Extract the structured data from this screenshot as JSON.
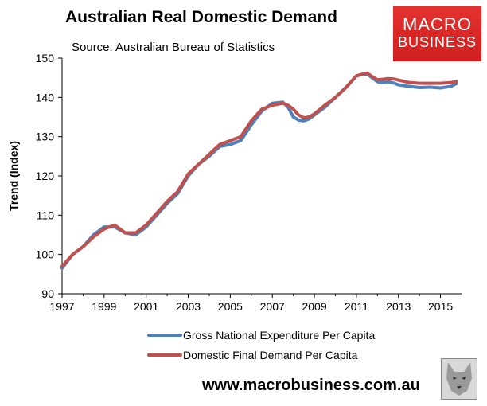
{
  "header": {
    "title": "Australian Real Domestic Demand",
    "subtitle": "Source: Australian Bureau of Statistics"
  },
  "logo": {
    "line1": "MACRO",
    "line2": "BUSINESS",
    "color": "#d62a27"
  },
  "footer": {
    "url": "www.macrobusiness.com.au",
    "badge_icon": "wolf-icon"
  },
  "chart_data": {
    "type": "line",
    "title": "Australian Real Domestic Demand",
    "ylabel": "Trend (Index)",
    "xlabel": "",
    "xlim": [
      1997,
      2016
    ],
    "ylim": [
      90,
      150
    ],
    "xticks": [
      "1997",
      "1999",
      "2001",
      "2003",
      "2005",
      "2007",
      "2009",
      "2011",
      "2013",
      "2015"
    ],
    "yticks": [
      "90",
      "100",
      "110",
      "120",
      "130",
      "140",
      "150"
    ],
    "grid": false,
    "legend": "bottom",
    "series": [
      {
        "name": "Gross National Expenditure Per Capita",
        "color": "#4f81bd",
        "x": [
          1997.0,
          1997.5,
          1998.0,
          1998.5,
          1999.0,
          1999.5,
          2000.0,
          2000.5,
          2001.0,
          2001.5,
          2002.0,
          2002.5,
          2003.0,
          2003.5,
          2004.0,
          2004.5,
          2005.0,
          2005.5,
          2006.0,
          2006.5,
          2007.0,
          2007.5,
          2007.75,
          2008.0,
          2008.25,
          2008.5,
          2008.75,
          2009.0,
          2009.5,
          2010.0,
          2010.5,
          2011.0,
          2011.5,
          2011.75,
          2012.0,
          2012.25,
          2012.5,
          2012.75,
          2013.0,
          2013.5,
          2014.0,
          2014.5,
          2015.0,
          2015.5,
          2015.75
        ],
        "values": [
          96.5,
          100.0,
          102.0,
          105.0,
          107.0,
          107.0,
          105.5,
          105.0,
          107.0,
          110.0,
          113.0,
          115.5,
          120.0,
          123.0,
          125.0,
          127.5,
          128.0,
          129.0,
          133.0,
          136.5,
          138.5,
          138.8,
          137.5,
          135.0,
          134.2,
          134.0,
          134.5,
          135.5,
          137.5,
          140.0,
          142.5,
          145.5,
          146.0,
          145.0,
          144.0,
          143.8,
          144.0,
          143.7,
          143.2,
          142.8,
          142.5,
          142.6,
          142.4,
          142.8,
          143.5
        ]
      },
      {
        "name": "Domestic Final Demand Per Capita",
        "color": "#c0504d",
        "x": [
          1997.0,
          1997.5,
          1998.0,
          1998.5,
          1999.0,
          1999.5,
          2000.0,
          2000.5,
          2001.0,
          2001.5,
          2002.0,
          2002.5,
          2003.0,
          2003.5,
          2004.0,
          2004.5,
          2005.0,
          2005.5,
          2006.0,
          2006.5,
          2007.0,
          2007.5,
          2007.75,
          2008.0,
          2008.25,
          2008.5,
          2008.75,
          2009.0,
          2009.5,
          2010.0,
          2010.5,
          2011.0,
          2011.5,
          2011.75,
          2012.0,
          2012.25,
          2012.5,
          2012.75,
          2013.0,
          2013.5,
          2014.0,
          2014.5,
          2015.0,
          2015.5,
          2015.75
        ],
        "values": [
          97.0,
          100.0,
          102.0,
          104.5,
          106.5,
          107.5,
          105.5,
          105.5,
          107.5,
          110.5,
          113.5,
          116.0,
          120.5,
          123.0,
          125.5,
          128.0,
          129.0,
          130.0,
          134.0,
          137.0,
          138.0,
          138.5,
          138.0,
          137.0,
          135.5,
          134.8,
          135.0,
          135.8,
          138.0,
          140.0,
          142.5,
          145.5,
          146.2,
          145.3,
          144.5,
          144.6,
          144.8,
          144.7,
          144.4,
          143.8,
          143.6,
          143.6,
          143.6,
          143.8,
          144.0
        ]
      }
    ]
  }
}
